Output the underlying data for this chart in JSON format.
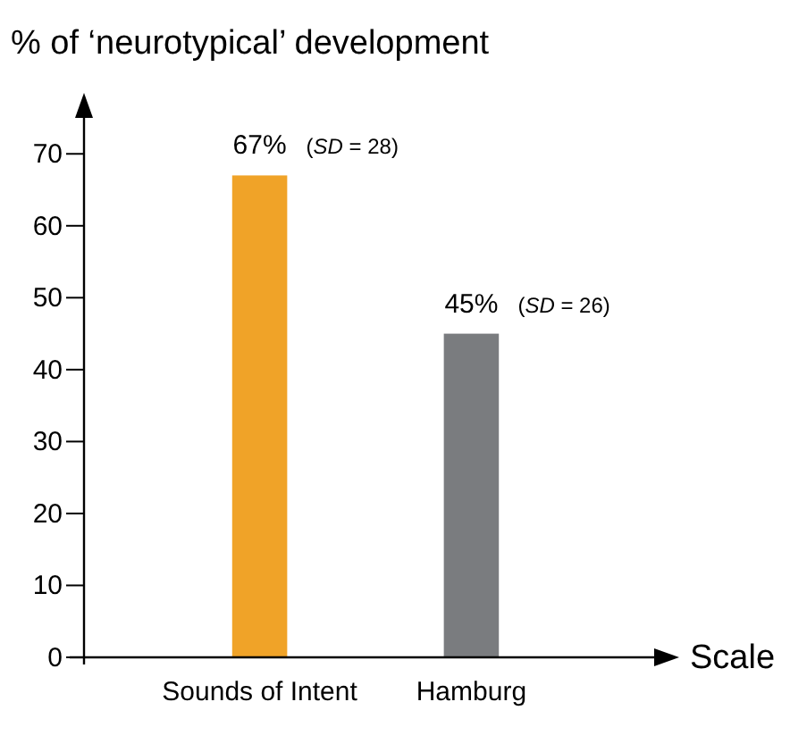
{
  "chart_data": {
    "type": "bar",
    "ylabel": "% of ‘neurotypical’ development",
    "xlabel": "Scale",
    "categories": [
      "Sounds of Intent",
      "Hamburg"
    ],
    "values": [
      67,
      45
    ],
    "colors": [
      "#f0a328",
      "#7a7c7f"
    ],
    "value_labels": [
      "67%",
      "45%"
    ],
    "annotations": [
      {
        "text": "(SD = 28)",
        "x": "Sounds of Intent",
        "y": 67
      },
      {
        "text": "(SD = 26)",
        "x": "Hamburg",
        "y": 45
      }
    ],
    "ylim": [
      0,
      75
    ],
    "yticks": [
      0,
      10,
      20,
      30,
      40,
      50,
      60,
      70
    ]
  }
}
